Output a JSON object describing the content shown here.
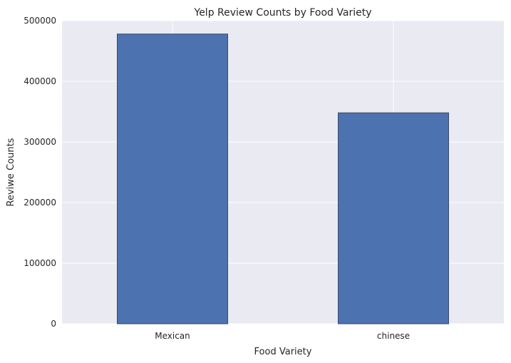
{
  "chart_data": {
    "type": "bar",
    "title": "Yelp Review Counts by Food Variety",
    "xlabel": "Food Variety",
    "ylabel": "Reviwe Counts",
    "categories": [
      "Mexican",
      "chinese"
    ],
    "values": [
      478000,
      348000
    ],
    "ylim": [
      0,
      500000
    ],
    "yticks": [
      0,
      100000,
      200000,
      300000,
      400000,
      500000
    ],
    "ytick_labels": [
      "0",
      "100000",
      "200000",
      "300000",
      "400000",
      "500000"
    ],
    "grid": true,
    "legend": "none",
    "colors": {
      "bar_fill": "#4c72b0",
      "bar_edge": "#3b4a63",
      "plot_background": "#eaeaf2",
      "grid": "#ffffff"
    }
  }
}
